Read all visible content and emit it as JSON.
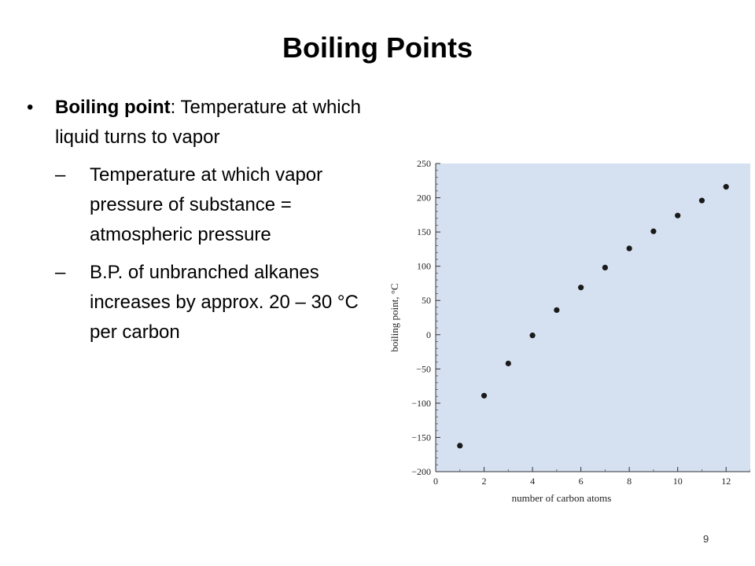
{
  "slide": {
    "title": "Boiling Points",
    "bullets": [
      {
        "bold": "Boiling point",
        "text": ": Temperature at which liquid turns to vapor",
        "subs": [
          "Temperature at which vapor pressure of substance = atmospheric pressure",
          "B.P. of unbranched alkanes increases by approx. 20 – 30 °C per carbon"
        ]
      }
    ],
    "page_number": "9"
  },
  "chart_data": {
    "type": "scatter",
    "xlabel": "number of carbon atoms",
    "ylabel": "boiling point, °C",
    "xlim": [
      0,
      13
    ],
    "ylim": [
      -200,
      250
    ],
    "xticks": [
      0,
      2,
      4,
      6,
      8,
      10,
      12
    ],
    "yticks": [
      -200,
      -150,
      -100,
      -50,
      0,
      50,
      100,
      150,
      200,
      250
    ],
    "ytick_labels": [
      "−200",
      "−150",
      "−100",
      "−50",
      "0",
      "50",
      "100",
      "150",
      "200",
      "250"
    ],
    "x": [
      1,
      2,
      3,
      4,
      5,
      6,
      7,
      8,
      9,
      10,
      11,
      12
    ],
    "y": [
      -162,
      -89,
      -42,
      -1,
      36,
      69,
      98,
      126,
      151,
      174,
      196,
      216
    ],
    "plot_background": "#d5e0f1",
    "point_color": "#1a1a1a"
  }
}
